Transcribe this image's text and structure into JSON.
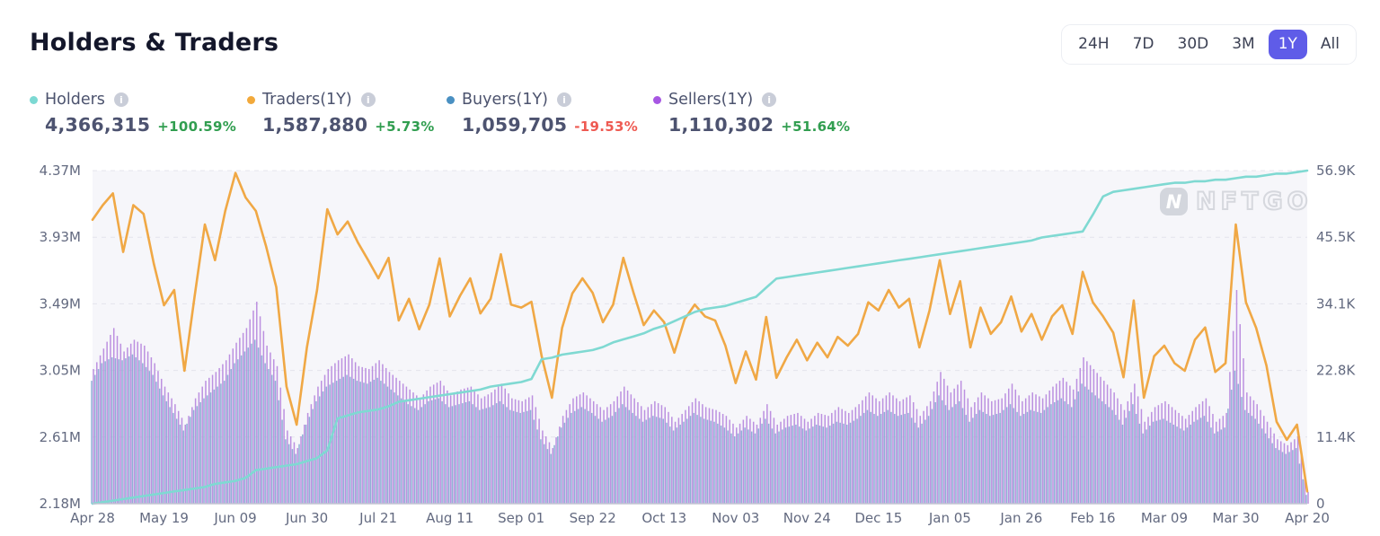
{
  "header": {
    "title": "Holders & Traders"
  },
  "time_range": {
    "options": [
      "24H",
      "7D",
      "30D",
      "3M",
      "1Y",
      "All"
    ],
    "selected": "1Y"
  },
  "legend": [
    {
      "name": "Holders",
      "dot_color": "#7cd9d3",
      "value": "4,366,315",
      "change": "+100.59%",
      "change_direction": "up",
      "info_icon": "info-icon"
    },
    {
      "name": "Traders(1Y)",
      "dot_color": "#f2a93b",
      "value": "1,587,880",
      "change": "+5.73%",
      "change_direction": "up",
      "info_icon": "info-icon"
    },
    {
      "name": "Buyers(1Y)",
      "dot_color": "#4a90c2",
      "value": "1,059,705",
      "change": "-19.53%",
      "change_direction": "down",
      "info_icon": "info-icon"
    },
    {
      "name": "Sellers(1Y)",
      "dot_color": "#a757e3",
      "value": "1,110,302",
      "change": "+51.64%",
      "change_direction": "up",
      "info_icon": "info-icon"
    }
  ],
  "watermark": {
    "text": "NFTGO",
    "logo_glyph": "N"
  },
  "colors": {
    "title": "#14172b",
    "selected_range_bg": "#5f5ce8",
    "positive": "#319e50",
    "negative": "#ee5a52",
    "holders_line": "#7fd9d2",
    "traders_line": "#f0a845",
    "buyers_bar": "#84a7d0",
    "sellers_bar": "#b685dd",
    "plot_background": "#f6f6fa",
    "gridline": "#e4e4ec",
    "axis_text": "#636a80"
  },
  "chart_data": {
    "type": "mixed",
    "title": "Holders & Traders (1Y)",
    "sample_interval_days": 3,
    "x_tick_labels": [
      "Apr 28",
      "May 19",
      "Jun 09",
      "Jun 30",
      "Jul 21",
      "Aug 11",
      "Sep 01",
      "Sep 22",
      "Oct 13",
      "Nov 03",
      "Nov 24",
      "Dec 15",
      "Jan 05",
      "Jan 26",
      "Feb 16",
      "Mar 09",
      "Mar 30",
      "Apr 20"
    ],
    "left_axis": {
      "unit": "M",
      "min": 2.18,
      "max": 4.37,
      "ticks": [
        "4.37M",
        "3.93M",
        "3.49M",
        "3.05M",
        "2.61M",
        "2.18M"
      ]
    },
    "right_axis": {
      "unit": "K",
      "min": 0,
      "max": 56.9,
      "ticks": [
        "56.9K",
        "45.5K",
        "34.1K",
        "22.8K",
        "11.4K",
        "0"
      ]
    },
    "grid": "dashed-horizontal",
    "legend_position": "top-left",
    "series": [
      {
        "name": "Holders",
        "type": "line",
        "axis": "left",
        "color": "#7fd9d2",
        "unit": "M",
        "values": [
          2.18,
          2.19,
          2.2,
          2.21,
          2.22,
          2.23,
          2.24,
          2.25,
          2.26,
          2.27,
          2.28,
          2.29,
          2.31,
          2.32,
          2.33,
          2.35,
          2.4,
          2.41,
          2.42,
          2.43,
          2.44,
          2.46,
          2.48,
          2.53,
          2.74,
          2.76,
          2.78,
          2.79,
          2.8,
          2.82,
          2.85,
          2.86,
          2.87,
          2.88,
          2.89,
          2.9,
          2.91,
          2.92,
          2.93,
          2.95,
          2.96,
          2.97,
          2.98,
          3.0,
          3.13,
          3.14,
          3.16,
          3.17,
          3.18,
          3.19,
          3.21,
          3.24,
          3.26,
          3.28,
          3.3,
          3.33,
          3.35,
          3.38,
          3.41,
          3.44,
          3.46,
          3.47,
          3.48,
          3.5,
          3.52,
          3.54,
          3.6,
          3.66,
          3.67,
          3.68,
          3.69,
          3.7,
          3.71,
          3.72,
          3.73,
          3.74,
          3.75,
          3.76,
          3.77,
          3.78,
          3.79,
          3.8,
          3.81,
          3.82,
          3.83,
          3.84,
          3.85,
          3.86,
          3.87,
          3.88,
          3.89,
          3.9,
          3.91,
          3.93,
          3.94,
          3.95,
          3.96,
          3.97,
          4.08,
          4.2,
          4.23,
          4.24,
          4.25,
          4.26,
          4.27,
          4.28,
          4.29,
          4.29,
          4.3,
          4.3,
          4.31,
          4.31,
          4.32,
          4.33,
          4.33,
          4.34,
          4.35,
          4.35,
          4.36,
          4.37
        ]
      },
      {
        "name": "Traders",
        "type": "line",
        "axis": "right",
        "color": "#f0a845",
        "unit": "K",
        "values": [
          48.5,
          51,
          53,
          43,
          51,
          49.5,
          41,
          33.9,
          36.5,
          22.7,
          35.4,
          47.7,
          41.6,
          50,
          56.5,
          52.3,
          50,
          44,
          37,
          20,
          13.5,
          26.7,
          36.5,
          50.3,
          46,
          48.2,
          44.6,
          41.6,
          38.5,
          42,
          31.3,
          35,
          29.8,
          34,
          41.9,
          32,
          35.5,
          38.5,
          32.5,
          35,
          42.6,
          34,
          33.5,
          34.5,
          25.2,
          18.1,
          30,
          35.9,
          38.5,
          36,
          31,
          34,
          42,
          36,
          30.5,
          33,
          31,
          25.8,
          31.5,
          34,
          32,
          31.3,
          27,
          20.6,
          26,
          21.2,
          31.9,
          21.5,
          25,
          28,
          24.5,
          27.5,
          25,
          28.5,
          27,
          29,
          34.4,
          33,
          36.5,
          33.5,
          35,
          26.7,
          33,
          41.6,
          32.4,
          38,
          26.7,
          33.5,
          29,
          31,
          35.4,
          29.4,
          32.4,
          28,
          32,
          33.9,
          29,
          39.6,
          34.4,
          32,
          29.2,
          21.6,
          34.7,
          18.1,
          25.2,
          27,
          24,
          22.7,
          28,
          30.1,
          22.5,
          24,
          47.7,
          34.4,
          30,
          23.6,
          14,
          10.9,
          13.5,
          2.1
        ]
      },
      {
        "name": "Buyers",
        "type": "bar",
        "axis": "right",
        "color": "#84a7d0",
        "unit": "K",
        "values": [
          21,
          24,
          25,
          24.5,
          25.5,
          24,
          22,
          18.5,
          15.5,
          12.5,
          16,
          18,
          19.5,
          21,
          24,
          26,
          28,
          24,
          21,
          11,
          8.5,
          13.5,
          17.5,
          20,
          21,
          22,
          21,
          20.5,
          21.5,
          20,
          18.5,
          17,
          16,
          17.5,
          18,
          16.5,
          17,
          17.5,
          16,
          16.5,
          17.5,
          16,
          15.5,
          16,
          11,
          8.5,
          13,
          15.5,
          16.5,
          15.5,
          14,
          15,
          17,
          15.5,
          14,
          15,
          14.5,
          12.5,
          14,
          15.5,
          14.5,
          14,
          13,
          11.5,
          13,
          12,
          14.5,
          12,
          13,
          13.5,
          12.5,
          13.5,
          13,
          14,
          13.5,
          14.5,
          16,
          15,
          16,
          15,
          15.5,
          13,
          15,
          18.5,
          16,
          17.5,
          14,
          16,
          15,
          15.5,
          17,
          15,
          16,
          15.5,
          17,
          18,
          16.5,
          20.5,
          19,
          17.5,
          16,
          13.5,
          17,
          12,
          14,
          14.5,
          13.5,
          12.5,
          14,
          15,
          12,
          13,
          22.7,
          16,
          14.5,
          12,
          9.5,
          8.5,
          9.5,
          1.5
        ]
      },
      {
        "name": "Sellers",
        "type": "bar",
        "axis": "right",
        "color": "#b685dd",
        "unit": "K",
        "values": [
          23,
          26.5,
          30,
          26,
          28,
          27,
          24,
          20,
          17,
          13.5,
          18,
          21,
          22.5,
          24.5,
          27.5,
          30,
          34.5,
          27,
          23.5,
          12.5,
          9.5,
          15.5,
          20,
          23,
          24.5,
          25.5,
          23.5,
          23,
          24.5,
          22.5,
          21,
          19.5,
          18,
          20,
          21,
          18.5,
          19.5,
          20,
          18,
          19,
          20.5,
          18,
          17.5,
          18.5,
          12.5,
          9.5,
          15,
          18,
          19,
          17.5,
          16,
          17.5,
          20,
          18,
          16,
          17.5,
          16.5,
          14,
          16,
          18,
          16.5,
          16,
          15,
          13,
          15,
          13.5,
          17,
          13.5,
          15,
          15.5,
          14,
          15.5,
          15,
          16.5,
          15.5,
          17,
          19,
          17.5,
          19,
          17.5,
          18.5,
          15,
          17.5,
          22.5,
          19,
          21,
          16.5,
          19,
          17.5,
          18,
          20.5,
          17.5,
          19,
          18,
          20,
          21.5,
          19.5,
          25,
          23,
          21,
          19,
          16,
          20.5,
          14,
          16.5,
          17.5,
          16,
          14.5,
          16.5,
          18,
          14,
          15.5,
          36.5,
          19,
          17,
          14,
          11,
          10,
          11.5,
          2
        ]
      }
    ]
  }
}
